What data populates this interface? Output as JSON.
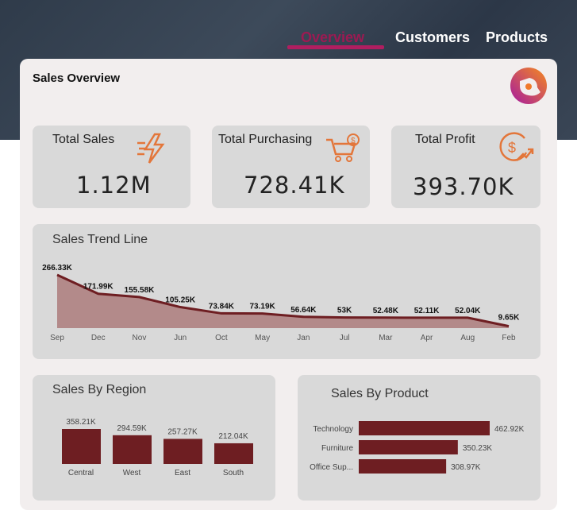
{
  "nav": {
    "tabs": [
      {
        "label": "Overview",
        "active": true
      },
      {
        "label": "Customers"
      },
      {
        "label": "Products"
      }
    ]
  },
  "header": {
    "title": "Sales Overview",
    "logo": "brand-logo"
  },
  "kpis": [
    {
      "label": "Total Sales",
      "value": "1.12M",
      "icon": "lightning-icon"
    },
    {
      "label": "Total Purchasing",
      "value": "728.41K",
      "icon": "shopping-cart-icon"
    },
    {
      "label": "Total Profit",
      "value": "393.70K",
      "icon": "dollar-growth-icon"
    }
  ],
  "colors": {
    "accent": "#b01e60",
    "bar": "#6e1e22",
    "area": "#b38a8a",
    "icon": "#e3763a"
  },
  "chart_data": [
    {
      "type": "area",
      "title": "Sales Trend Line",
      "categories": [
        "Sep",
        "Dec",
        "Nov",
        "Jun",
        "Oct",
        "May",
        "Jan",
        "Jul",
        "Mar",
        "Apr",
        "Aug",
        "Feb"
      ],
      "values": [
        266.33,
        171.99,
        155.58,
        105.25,
        73.84,
        73.19,
        56.64,
        53,
        52.48,
        52.11,
        52.04,
        9.65
      ],
      "labels": [
        "266.33K",
        "171.99K",
        "155.58K",
        "105.25K",
        "73.84K",
        "73.19K",
        "56.64K",
        "53K",
        "52.48K",
        "52.11K",
        "52.04K",
        "9.65K"
      ],
      "unit": "K",
      "grid": false
    },
    {
      "type": "bar",
      "title": "Sales By Region",
      "categories": [
        "Central",
        "West",
        "East",
        "South"
      ],
      "values": [
        358.21,
        294.59,
        257.27,
        212.04
      ],
      "labels": [
        "358.21K",
        "294.59K",
        "257.27K",
        "212.04K"
      ],
      "unit": "K"
    },
    {
      "type": "bar",
      "orientation": "horizontal",
      "title": "Sales By Product",
      "categories": [
        "Technology",
        "Furniture",
        "Office Sup..."
      ],
      "values": [
        462.92,
        350.23,
        308.97
      ],
      "labels": [
        "462.92K",
        "350.23K",
        "308.97K"
      ],
      "unit": "K"
    }
  ]
}
